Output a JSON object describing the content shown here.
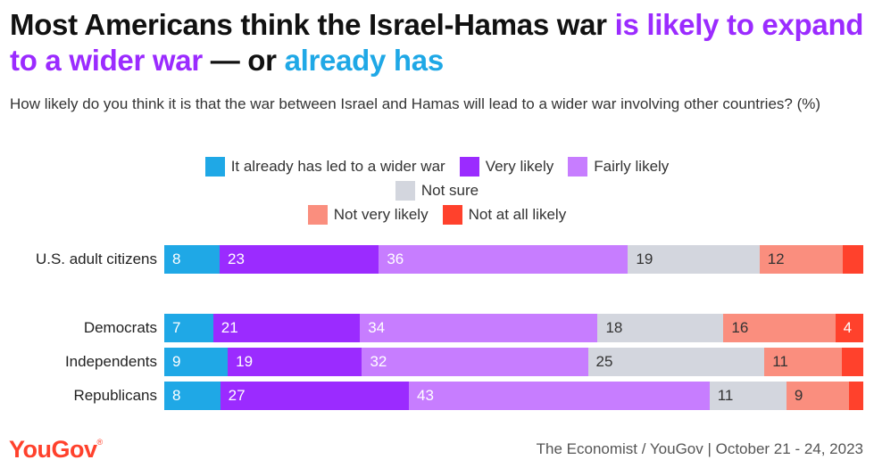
{
  "title": {
    "part1": "Most Americans think the Israel-Hamas war ",
    "part2": "is likely to expand to a wider war",
    "part3": " — or ",
    "part4": "already has"
  },
  "subtitle": "How likely do you think it is that the war between Israel and Hamas will lead to a wider war involving other countries? (%)",
  "colors": {
    "already": "#1fa8e6",
    "very_likely": "#9b2bff",
    "fairly_likely": "#c77dff",
    "not_sure": "#d3d6de",
    "not_very_likely": "#fa8e7e",
    "not_at_all_likely": "#ff412c"
  },
  "footer": {
    "logo": "YouGov",
    "source": "The Economist / YouGov | October 21 - 24, 2023"
  },
  "chart_data": {
    "type": "bar",
    "orientation": "horizontal",
    "stacked": true,
    "normalized": true,
    "categories": [
      "U.S. adult citizens",
      "Democrats",
      "Independents",
      "Republicans"
    ],
    "series": [
      {
        "name": "It already has led to a wider war",
        "values": [
          8,
          7,
          9,
          8
        ],
        "labels": [
          "8",
          "7",
          "9",
          "8"
        ]
      },
      {
        "name": "Very likely",
        "values": [
          23,
          21,
          19,
          27
        ],
        "labels": [
          "23",
          "21",
          "19",
          "27"
        ]
      },
      {
        "name": "Fairly likely",
        "values": [
          36,
          34,
          32,
          43
        ],
        "labels": [
          "36",
          "34",
          "32",
          "43"
        ]
      },
      {
        "name": "Not sure",
        "values": [
          19,
          18,
          25,
          11
        ],
        "labels": [
          "19",
          "18",
          "25",
          "11"
        ]
      },
      {
        "name": "Not very likely",
        "values": [
          12,
          16,
          11,
          9
        ],
        "labels": [
          "12",
          "16",
          "11",
          "9"
        ]
      },
      {
        "name": "Not at all likely",
        "values": [
          3,
          4,
          3,
          2
        ],
        "labels": [
          "",
          "4",
          "",
          ""
        ]
      }
    ],
    "legend_position": "top-center",
    "grid": false
  }
}
